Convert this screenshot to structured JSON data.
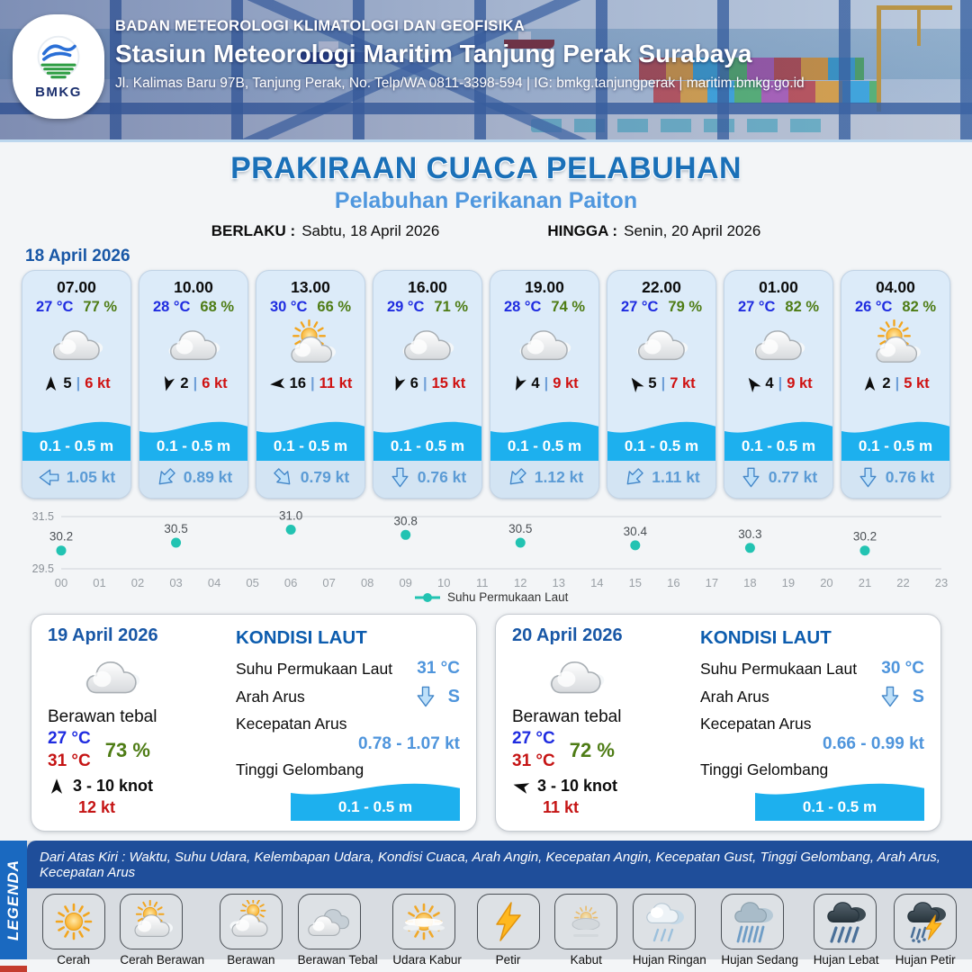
{
  "header": {
    "agency": "BADAN METEOROLOGI KLIMATOLOGI DAN GEOFISIKA",
    "station": "Stasiun Meteorologi Maritim Tanjung Perak Surabaya",
    "address": "Jl. Kalimas Baru 97B, Tanjung Perak, No. Telp/WA 0811-3398-594 | IG: bmkg.tanjungperak | maritim.bmkg.go.id",
    "logo_text": "BMKG"
  },
  "title": {
    "main": "PRAKIRAAN CUACA PELABUHAN",
    "subtitle": "Pelabuhan Perikanan Paiton",
    "valid_from_label": "BERLAKU :",
    "valid_from": "Sabtu, 18 April 2026",
    "valid_to_label": "HINGGA :",
    "valid_to": "Senin, 20 April 2026"
  },
  "hourly": {
    "date": "18 April 2026",
    "sep": "|",
    "cards": [
      {
        "time": "07.00",
        "temp": "27 °C",
        "humidity": "77 %",
        "weather": "berawan",
        "wind_dir_deg": 0,
        "wind_speed": "5",
        "gust": "6 kt",
        "wave": "0.1 - 0.5 m",
        "current_dir_deg": 270,
        "current_speed": "1.05 kt"
      },
      {
        "time": "10.00",
        "temp": "28 °C",
        "humidity": "68 %",
        "weather": "berawan",
        "wind_dir_deg": 195,
        "wind_speed": "2",
        "gust": "6 kt",
        "wave": "0.1 - 0.5 m",
        "current_dir_deg": 225,
        "current_speed": "0.89 kt"
      },
      {
        "time": "13.00",
        "temp": "30 °C",
        "humidity": "66 %",
        "weather": "cerah-berawan",
        "wind_dir_deg": 265,
        "wind_speed": "16",
        "gust": "11 kt",
        "wave": "0.1 - 0.5 m",
        "current_dir_deg": 135,
        "current_speed": "0.79 kt"
      },
      {
        "time": "16.00",
        "temp": "29 °C",
        "humidity": "71 %",
        "weather": "berawan",
        "wind_dir_deg": 200,
        "wind_speed": "6",
        "gust": "15 kt",
        "wave": "0.1 - 0.5 m",
        "current_dir_deg": 180,
        "current_speed": "0.76 kt"
      },
      {
        "time": "19.00",
        "temp": "28 °C",
        "humidity": "74 %",
        "weather": "berawan",
        "wind_dir_deg": 205,
        "wind_speed": "4",
        "gust": "9 kt",
        "wave": "0.1 - 0.5 m",
        "current_dir_deg": 225,
        "current_speed": "1.12 kt"
      },
      {
        "time": "22.00",
        "temp": "27 °C",
        "humidity": "79 %",
        "weather": "berawan",
        "wind_dir_deg": 325,
        "wind_speed": "5",
        "gust": "7 kt",
        "wave": "0.1 - 0.5 m",
        "current_dir_deg": 225,
        "current_speed": "1.11 kt"
      },
      {
        "time": "01.00",
        "temp": "27 °C",
        "humidity": "82 %",
        "weather": "berawan",
        "wind_dir_deg": 325,
        "wind_speed": "4",
        "gust": "9 kt",
        "wave": "0.1 - 0.5 m",
        "current_dir_deg": 180,
        "current_speed": "0.77 kt"
      },
      {
        "time": "04.00",
        "temp": "26 °C",
        "humidity": "82 %",
        "weather": "cerah-berawan",
        "wind_dir_deg": 0,
        "wind_speed": "2",
        "gust": "5 kt",
        "wave": "0.1 - 0.5 m",
        "current_dir_deg": 180,
        "current_speed": "0.76 kt"
      }
    ]
  },
  "chart_data": {
    "type": "scatter",
    "title": "",
    "series_name": "Suhu Permukaan Laut",
    "x": [
      0,
      3,
      6,
      9,
      12,
      15,
      18,
      21
    ],
    "values": [
      30.2,
      30.5,
      31.0,
      30.8,
      30.5,
      30.4,
      30.3,
      30.2
    ],
    "x_ticks": [
      "00",
      "01",
      "02",
      "03",
      "04",
      "05",
      "06",
      "07",
      "08",
      "09",
      "10",
      "11",
      "12",
      "13",
      "14",
      "15",
      "16",
      "17",
      "18",
      "19",
      "20",
      "21",
      "22",
      "23"
    ],
    "ylim": [
      29.5,
      31.5
    ],
    "y_ticks": [
      29.5,
      31.5
    ],
    "grid": true,
    "legend_position": "bottom",
    "marker_color": "#22c3b2"
  },
  "daily": [
    {
      "date": "19 April 2026",
      "icon": "berawan",
      "condition": "Berawan tebal",
      "temp_min": "27 °C",
      "temp_max": "31 °C",
      "humidity": "73 %",
      "wind_dir_deg": 0,
      "wind_range": "3  - 10 knot",
      "gust": "12 kt",
      "sea": {
        "title": "KONDISI LAUT",
        "sst_label": "Suhu Permukaan Laut",
        "sst": "31 °C",
        "current_dir_label": "Arah Arus",
        "current_dir": "S",
        "current_dir_deg": 180,
        "current_speed_label": "Kecepatan Arus",
        "current_speed": "0.78  - 1.07 kt",
        "wave_label": "Tinggi Gelombang",
        "wave": "0.1 - 0.5 m"
      }
    },
    {
      "date": "20 April 2026",
      "icon": "berawan",
      "condition": "Berawan tebal",
      "temp_min": "27 °C",
      "temp_max": "31 °C",
      "humidity": "72 %",
      "wind_dir_deg": 285,
      "wind_range": "3  - 10 knot",
      "gust": "11 kt",
      "sea": {
        "title": "KONDISI LAUT",
        "sst_label": "Suhu Permukaan Laut",
        "sst": "30 °C",
        "current_dir_label": "Arah Arus",
        "current_dir": "S",
        "current_dir_deg": 180,
        "current_speed_label": "Kecepatan Arus",
        "current_speed": "0.66 - 0.99 kt",
        "wave_label": "Tinggi Gelombang",
        "wave": "0.1 - 0.5 m"
      }
    }
  ],
  "legend": {
    "title": "LEGENDA",
    "description": "Dari Atas Kiri : Waktu, Suhu Udara, Kelembapan Udara, Kondisi Cuaca, Arah Angin, Kecepatan Angin, Kecepatan Gust, Tinggi Gelombang, Arah Arus, Kecepatan Arus",
    "items": [
      {
        "label": "Cerah",
        "icon": "cerah"
      },
      {
        "label": "Cerah Berawan",
        "icon": "cerah-berawan"
      },
      {
        "label": "Berawan",
        "icon": "berawan-sun"
      },
      {
        "label": "Berawan Tebal",
        "icon": "berawan-tebal"
      },
      {
        "label": "Udara Kabur",
        "icon": "udara-kabur"
      },
      {
        "label": "Petir",
        "icon": "petir"
      },
      {
        "label": "Kabut",
        "icon": "kabut"
      },
      {
        "label": "Hujan Ringan",
        "icon": "hujan-ringan"
      },
      {
        "label": "Hujan Sedang",
        "icon": "hujan-sedang"
      },
      {
        "label": "Hujan Lebat",
        "icon": "hujan-lebat"
      },
      {
        "label": "Hujan Petir",
        "icon": "hujan-petir"
      }
    ]
  }
}
